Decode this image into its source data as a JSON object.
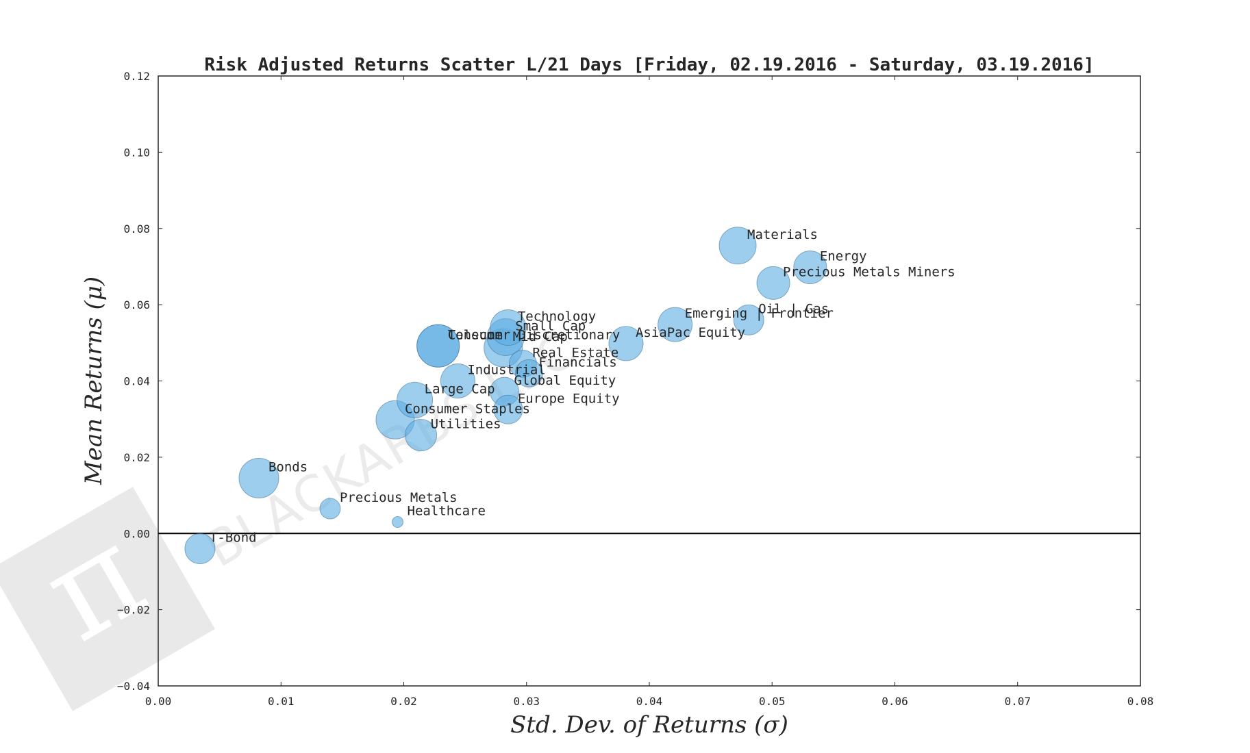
{
  "chart_data": {
    "type": "scatter",
    "title": "Risk Adjusted Returns Scatter L/21 Days [Friday, 02.19.2016 - Saturday, 03.19.2016]",
    "xlabel": "Std.  Dev.  of  Returns   (σ)",
    "ylabel": "Mean  Returns   (μ)",
    "xlim": [
      0.0,
      0.08
    ],
    "ylim": [
      -0.04,
      0.12
    ],
    "xticks": [
      "0.00",
      "0.01",
      "0.02",
      "0.03",
      "0.04",
      "0.05",
      "0.06",
      "0.07",
      "0.08"
    ],
    "yticks": [
      "−0.04",
      "−0.02",
      "0.00",
      "0.02",
      "0.04",
      "0.06",
      "0.08",
      "0.10",
      "0.12"
    ],
    "zero_line": true,
    "grid": false,
    "bubble_color": "#5dade2",
    "watermark": "BLACKARBS LLC",
    "points": [
      {
        "label": "T-Bond",
        "x": 0.0034,
        "y": -0.004,
        "r": 22
      },
      {
        "label": "Bonds",
        "x": 0.0082,
        "y": 0.0145,
        "r": 29
      },
      {
        "label": "Precious Metals",
        "x": 0.014,
        "y": 0.0065,
        "r": 15
      },
      {
        "label": "Healthcare",
        "x": 0.0195,
        "y": 0.003,
        "r": 8
      },
      {
        "label": "Consumer Staples",
        "x": 0.0193,
        "y": 0.0298,
        "r": 28
      },
      {
        "label": "Utilities",
        "x": 0.0214,
        "y": 0.0258,
        "r": 23
      },
      {
        "label": "Large Cap",
        "x": 0.0209,
        "y": 0.035,
        "r": 26
      },
      {
        "label": "Industrial",
        "x": 0.0244,
        "y": 0.04,
        "r": 25
      },
      {
        "label": "Telecom",
        "x": 0.0228,
        "y": 0.0492,
        "r": 31
      },
      {
        "label": "Consumer Discretionary",
        "x": 0.0228,
        "y": 0.0492,
        "r": 31
      },
      {
        "label": "Mid Cap",
        "x": 0.0281,
        "y": 0.0487,
        "r": 28
      },
      {
        "label": "Small Cap",
        "x": 0.0283,
        "y": 0.0515,
        "r": 27
      },
      {
        "label": "Technology",
        "x": 0.0285,
        "y": 0.054,
        "r": 26
      },
      {
        "label": "Real Estate",
        "x": 0.0297,
        "y": 0.0445,
        "r": 20
      },
      {
        "label": "Financials",
        "x": 0.0302,
        "y": 0.042,
        "r": 20
      },
      {
        "label": "Global Equity",
        "x": 0.0282,
        "y": 0.0372,
        "r": 21
      },
      {
        "label": "Europe Equity",
        "x": 0.0285,
        "y": 0.0325,
        "r": 21
      },
      {
        "label": "AsiaPac Equity",
        "x": 0.0381,
        "y": 0.0498,
        "r": 25
      },
      {
        "label": "Emerging | Frontier",
        "x": 0.0421,
        "y": 0.0548,
        "r": 25
      },
      {
        "label": "Oil | Gas",
        "x": 0.0481,
        "y": 0.056,
        "r": 22
      },
      {
        "label": "Materials",
        "x": 0.0472,
        "y": 0.0755,
        "r": 27
      },
      {
        "label": "Precious Metals Miners",
        "x": 0.0501,
        "y": 0.0657,
        "r": 24
      },
      {
        "label": "Energy",
        "x": 0.0531,
        "y": 0.0698,
        "r": 24
      }
    ]
  }
}
